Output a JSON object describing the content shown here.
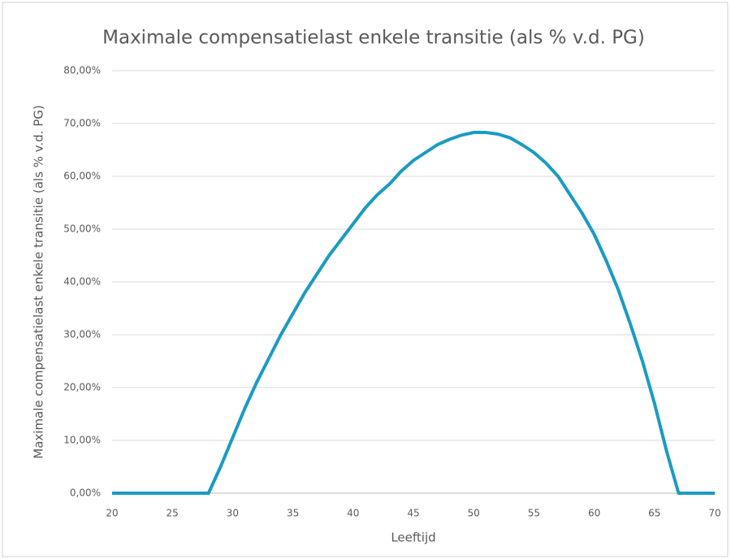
{
  "chart_data": {
    "type": "line",
    "title": "Maximale compensatielast  enkele transitie (als % v.d. PG)",
    "x_label": "Leeftijd",
    "y_label": "Maximale compensatielast enkele transitie (als % v.d. PG)",
    "x": [
      20,
      21,
      22,
      23,
      24,
      25,
      26,
      27,
      28,
      29,
      30,
      31,
      32,
      33,
      34,
      35,
      36,
      37,
      38,
      39,
      40,
      41,
      42,
      43,
      44,
      45,
      46,
      47,
      48,
      49,
      50,
      51,
      52,
      53,
      54,
      55,
      56,
      57,
      58,
      59,
      60,
      61,
      62,
      63,
      64,
      65,
      66,
      67,
      68,
      69,
      70
    ],
    "series": [
      {
        "name": "Maximale compensatielast",
        "color": "#1a9bc2",
        "values": [
          0,
          0,
          0,
          0,
          0,
          0,
          0,
          0,
          0,
          5,
          10.5,
          16,
          21,
          25.5,
          30,
          34,
          38,
          41.5,
          45,
          48,
          51,
          54,
          56.5,
          58.5,
          61,
          63,
          64.5,
          66,
          67,
          67.8,
          68.3,
          68.3,
          68,
          67.3,
          66,
          64.5,
          62.5,
          60,
          56.5,
          53,
          49,
          44,
          38.5,
          32,
          25,
          17,
          8,
          0,
          0,
          0,
          0
        ]
      }
    ],
    "xlim": [
      20,
      70
    ],
    "xticks": [
      20,
      25,
      30,
      35,
      40,
      45,
      50,
      55,
      60,
      65,
      70
    ],
    "ylim": [
      0,
      80
    ],
    "yticks": [
      {
        "value": 0,
        "label": "0,00%"
      },
      {
        "value": 10,
        "label": "10,00%"
      },
      {
        "value": 20,
        "label": "20,00%"
      },
      {
        "value": 30,
        "label": "30,00%"
      },
      {
        "value": 40,
        "label": "40,00%"
      },
      {
        "value": 50,
        "label": "50,00%"
      },
      {
        "value": 60,
        "label": "60,00%"
      },
      {
        "value": 70,
        "label": "70,00%"
      },
      {
        "value": 80,
        "label": "80,00%"
      }
    ],
    "grid": true
  }
}
